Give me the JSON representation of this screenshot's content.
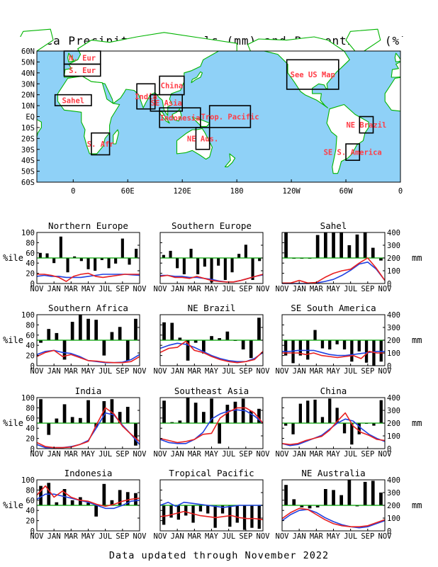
{
  "header": {
    "title": "Area Precipitation Totals (mm) and Percentiles (%)"
  },
  "footer": {
    "text": "Data updated through November 2022"
  },
  "colors": {
    "ocean": "#8fd1f7",
    "land": "#ffffff",
    "coast": "#00b400",
    "box": "#000000",
    "region_label": "#ff3c46",
    "bar": "#000000",
    "percentile_line": "#00a000",
    "observed": "#e82020",
    "normal": "#2040e0"
  },
  "map": {
    "lat_labels": [
      "60N",
      "50N",
      "40N",
      "30N",
      "20N",
      "10N",
      "EQ",
      "10S",
      "20S",
      "30S",
      "40S",
      "50S",
      "60S"
    ],
    "lon_labels": [
      "0",
      "60E",
      "120E",
      "180",
      "120W",
      "60W",
      "0"
    ],
    "lon_values": [
      0,
      60,
      120,
      180,
      240,
      300,
      360
    ],
    "extent": {
      "lon_min": -40,
      "lon_max": 360,
      "lat_min": -60,
      "lat_max": 60
    },
    "regions": [
      {
        "label": "N. Eur",
        "lon": [
          -10,
          30
        ],
        "lat": [
          48,
          60
        ]
      },
      {
        "label": "S. Eur",
        "lon": [
          -10,
          30
        ],
        "lat": [
          37,
          48
        ]
      },
      {
        "label": "Sahel",
        "lon": [
          -20,
          20
        ],
        "lat": [
          10,
          20
        ]
      },
      {
        "label": "S. Afr",
        "lon": [
          20,
          40
        ],
        "lat": [
          -35,
          -15
        ]
      },
      {
        "label": "India",
        "lon": [
          70,
          90
        ],
        "lat": [
          7,
          30
        ]
      },
      {
        "label": "China",
        "lon": [
          95,
          122
        ],
        "lat": [
          20,
          37
        ]
      },
      {
        "label": "SE Asia",
        "lon": [
          85,
          120
        ],
        "lat": [
          5,
          20
        ]
      },
      {
        "label": "Indonesia",
        "lon": [
          95,
          140
        ],
        "lat": [
          -10,
          8
        ]
      },
      {
        "label": "Trop. Pacific",
        "lon": [
          150,
          195
        ],
        "lat": [
          -10,
          10
        ]
      },
      {
        "label": "NE Aus.",
        "lon": [
          135,
          150
        ],
        "lat": [
          -30,
          -10
        ]
      },
      {
        "label": "See US Map",
        "lon": [
          235,
          292
        ],
        "lat": [
          25,
          52
        ]
      },
      {
        "label": "NE Brazil",
        "lon": [
          315,
          330
        ],
        "lat": [
          -15,
          0
        ]
      },
      {
        "label": "SE S. America",
        "lon": [
          300,
          315
        ],
        "lat": [
          -40,
          -25
        ]
      }
    ]
  },
  "chart_data": {
    "type": "bar",
    "x_tick_labels": [
      "NOV",
      "JAN",
      "MAR",
      "MAY",
      "JUL",
      "SEP",
      "NOV"
    ],
    "left_axis": {
      "label": "%ile",
      "ylim": [
        0,
        100
      ],
      "ticks": [
        0,
        20,
        40,
        60,
        80,
        100
      ]
    },
    "right_axis": {
      "label": "mm",
      "ylim": [
        0,
        400
      ],
      "ticks": [
        0,
        100,
        200,
        300,
        400
      ]
    },
    "percentile_reference": 50,
    "panels": [
      {
        "name": "Northern Europe",
        "show_left": true,
        "show_right": false,
        "pct": [
          60,
          59,
          40,
          92,
          22,
          53,
          44,
          28,
          25,
          46,
          30,
          39,
          88,
          37,
          68
        ],
        "obs": [
          18,
          18,
          16,
          12,
          4,
          14,
          18,
          20,
          14,
          12,
          14,
          16,
          18,
          18,
          18
        ],
        "norm": [
          14,
          16,
          14,
          14,
          12,
          12,
          12,
          14,
          16,
          18,
          18,
          18,
          18,
          17,
          16
        ]
      },
      {
        "name": "Southern Europe",
        "show_left": false,
        "show_right": false,
        "pct": [
          56,
          64,
          30,
          18,
          68,
          18,
          33,
          2,
          35,
          7,
          22,
          58,
          76,
          7,
          44
        ],
        "obs": [
          14,
          16,
          12,
          12,
          10,
          14,
          10,
          6,
          4,
          3,
          3,
          6,
          10,
          14,
          18
        ],
        "norm": [
          16,
          16,
          14,
          14,
          12,
          12,
          10,
          8,
          5,
          3,
          3,
          6,
          10,
          14,
          17
        ]
      },
      {
        "name": "Sahel",
        "show_left": false,
        "show_right": true,
        "pct": [
          100,
          49,
          49,
          49,
          95,
          100,
          100,
          100,
          75,
          96,
          100,
          70,
          45
        ],
        "obs": [
          1,
          1,
          6,
          1,
          2,
          12,
          20,
          25,
          28,
          40,
          50,
          30,
          6
        ],
        "norm": [
          0,
          0,
          0,
          0,
          1,
          4,
          8,
          16,
          26,
          38,
          42,
          28,
          6
        ]
      },
      {
        "name": "Southern Africa",
        "show_left": true,
        "show_right": false,
        "pct": [
          45,
          72,
          64,
          12,
          86,
          100,
          92,
          90,
          20,
          66,
          76,
          10,
          92
        ],
        "obs": [
          18,
          26,
          30,
          18,
          22,
          16,
          10,
          9,
          7,
          6,
          6,
          8,
          18
        ],
        "norm": [
          22,
          28,
          30,
          26,
          24,
          18,
          10,
          8,
          6,
          6,
          7,
          12,
          22
        ]
      },
      {
        "name": "NE Brazil",
        "show_left": false,
        "show_right": false,
        "pct": [
          85,
          84,
          55,
          10,
          45,
          24,
          58,
          54,
          67,
          49,
          32,
          15,
          94
        ],
        "obs": [
          26,
          34,
          36,
          48,
          30,
          26,
          18,
          12,
          8,
          6,
          8,
          12,
          28
        ],
        "norm": [
          34,
          40,
          44,
          42,
          36,
          28,
          20,
          14,
          10,
          8,
          8,
          14,
          26
        ]
      },
      {
        "name": "SE South America",
        "show_left": false,
        "show_right": true,
        "pct": [
          20,
          5,
          20,
          12,
          70,
          34,
          32,
          42,
          32,
          8,
          28,
          6,
          0,
          8
        ],
        "obs": [
          25,
          25,
          25,
          22,
          25,
          20,
          18,
          16,
          18,
          20,
          14,
          28,
          25,
          25
        ],
        "norm": [
          28,
          28,
          30,
          30,
          30,
          26,
          22,
          20,
          20,
          22,
          24,
          26,
          28,
          28
        ]
      },
      {
        "name": "India",
        "show_left": true,
        "show_right": false,
        "pct": [
          97,
          27,
          59,
          87,
          62,
          60,
          95,
          42,
          93,
          97,
          72,
          82,
          6
        ],
        "obs": [
          12,
          4,
          2,
          2,
          3,
          8,
          14,
          48,
          80,
          68,
          44,
          28,
          14
        ],
        "norm": [
          8,
          2,
          2,
          2,
          4,
          8,
          16,
          42,
          70,
          66,
          46,
          28,
          8
        ]
      },
      {
        "name": "Southeast Asia",
        "show_left": false,
        "show_right": false,
        "pct": [
          94,
          52,
          55,
          100,
          90,
          72,
          98,
          10,
          86,
          92,
          98,
          74,
          78
        ],
        "obs": [
          20,
          16,
          12,
          14,
          18,
          28,
          30,
          60,
          72,
          80,
          80,
          70,
          50
        ],
        "norm": [
          18,
          12,
          10,
          10,
          18,
          32,
          58,
          68,
          74,
          76,
          74,
          64,
          50
        ]
      },
      {
        "name": "China",
        "show_left": false,
        "show_right": true,
        "pct": [
          45,
          28,
          88,
          94,
          96,
          62,
          98,
          80,
          30,
          8,
          28,
          49,
          45,
          95
        ],
        "obs": [
          10,
          8,
          10,
          16,
          20,
          24,
          36,
          54,
          70,
          44,
          32,
          26,
          18,
          16
        ],
        "norm": [
          10,
          6,
          8,
          14,
          20,
          26,
          38,
          50,
          58,
          54,
          40,
          28,
          20,
          14
        ]
      },
      {
        "name": "Indonesia",
        "show_left": true,
        "show_right": false,
        "pct": [
          88,
          94,
          56,
          82,
          60,
          66,
          55,
          28,
          92,
          60,
          80,
          76,
          74
        ],
        "obs": [
          70,
          88,
          66,
          78,
          66,
          60,
          58,
          52,
          48,
          52,
          58,
          62,
          64
        ],
        "norm": [
          62,
          72,
          72,
          68,
          64,
          60,
          56,
          50,
          44,
          44,
          50,
          58,
          60
        ]
      },
      {
        "name": "Tropical Pacific",
        "show_left": false,
        "show_right": false,
        "pct": [
          12,
          26,
          22,
          30,
          16,
          38,
          34,
          6,
          34,
          8,
          16,
          2,
          6,
          4
        ],
        "obs": [
          28,
          30,
          34,
          38,
          34,
          30,
          28,
          26,
          28,
          30,
          26,
          24,
          24,
          22
        ],
        "norm": [
          50,
          56,
          48,
          56,
          54,
          52,
          50,
          48,
          46,
          48,
          50,
          50,
          50,
          50
        ]
      },
      {
        "name": "NE Australia",
        "show_left": false,
        "show_right": true,
        "pct": [
          90,
          62,
          46,
          44,
          46,
          82,
          80,
          70,
          100,
          48,
          96,
          98,
          75
        ],
        "obs": [
          24,
          36,
          44,
          42,
          32,
          22,
          14,
          10,
          8,
          8,
          10,
          16,
          22
        ],
        "norm": [
          20,
          32,
          40,
          42,
          36,
          26,
          18,
          12,
          8,
          6,
          8,
          14,
          20
        ]
      }
    ]
  }
}
